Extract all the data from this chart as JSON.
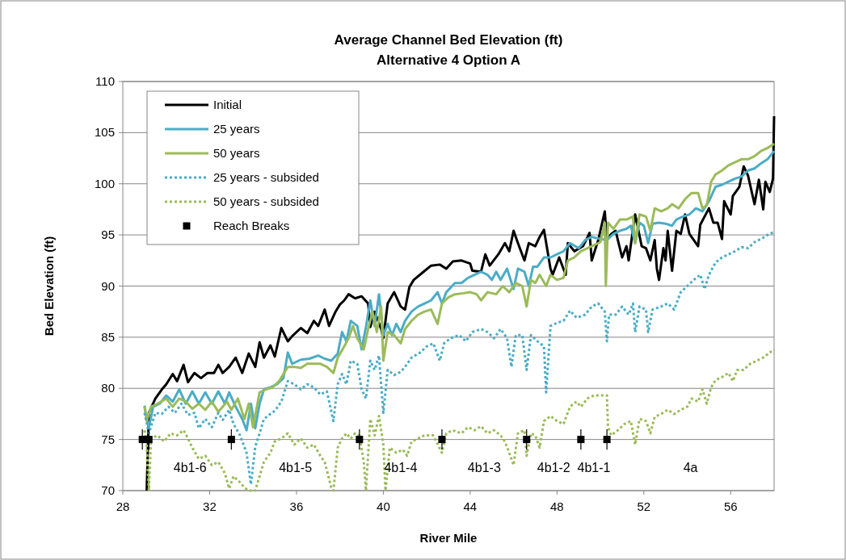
{
  "chart_data": {
    "type": "line",
    "title": "Average Channel Bed Elevation (ft)",
    "subtitle": "Alternative 4 Option A",
    "xlabel": "River Mile",
    "ylabel": "Bed Elevation (ft)",
    "xlim": [
      28,
      58
    ],
    "xticks": [
      28,
      32,
      36,
      40,
      44,
      48,
      52,
      56
    ],
    "ylim": [
      70,
      110
    ],
    "yticks": [
      70,
      75,
      80,
      85,
      90,
      95,
      100,
      105,
      110
    ],
    "grid": "y",
    "legend": "top left",
    "series": [
      {
        "name": "Initial",
        "line_style": "solid",
        "color": "#000000",
        "x": [
          29.1,
          29.2,
          29.5,
          29.8,
          30.0,
          30.3,
          30.5,
          30.8,
          31.0,
          31.3,
          31.6,
          31.9,
          32.2,
          32.4,
          32.6,
          32.9,
          33.2,
          33.5,
          33.8,
          34.1,
          34.3,
          34.5,
          34.8,
          35.0,
          35.3,
          35.6,
          35.8,
          36.2,
          36.5,
          36.8,
          37.0,
          37.3,
          37.5,
          37.8,
          38.0,
          38.2,
          38.4,
          38.7,
          39.0,
          39.3,
          39.4,
          39.6,
          39.9,
          40.0,
          40.2,
          40.5,
          40.8,
          41.0,
          41.2,
          41.4,
          41.8,
          42.2,
          42.6,
          42.9,
          43.2,
          43.6,
          44.0,
          44.1,
          44.5,
          44.7,
          44.9,
          45.3,
          45.6,
          45.8,
          46.0,
          46.2,
          46.5,
          46.7,
          47.0,
          47.2,
          47.4,
          47.7,
          47.8,
          48.1,
          48.4,
          48.5,
          48.8,
          49.2,
          49.5,
          49.6,
          49.9,
          50.2,
          50.3,
          50.5,
          50.7,
          51.0,
          51.2,
          51.3,
          51.6,
          51.9,
          52.1,
          52.3,
          52.5,
          52.6,
          52.7,
          52.9,
          53.0,
          53.1,
          53.3,
          53.5,
          53.7,
          53.9,
          54.1,
          54.5,
          54.6,
          55.0,
          55.2,
          55.4,
          55.6,
          55.7,
          56.0,
          56.1,
          56.4,
          56.6,
          56.8,
          57.1,
          57.3,
          57.5,
          57.6,
          57.8,
          57.95,
          58.0
        ],
        "values": [
          70,
          77.6,
          79.0,
          79.9,
          80.4,
          81.4,
          80.7,
          82.3,
          80.6,
          81.5,
          81.0,
          81.5,
          81.5,
          82.3,
          81.5,
          82.1,
          83.0,
          81.5,
          83.4,
          82.1,
          84.5,
          83.0,
          84.2,
          83.1,
          85.9,
          84.6,
          85.1,
          85.9,
          85.4,
          86.6,
          86.1,
          87.7,
          86.1,
          87.5,
          88.2,
          88.6,
          89.2,
          88.8,
          89.0,
          88.3,
          86.0,
          87.5,
          85.8,
          84.9,
          88.3,
          89.4,
          88.0,
          87.7,
          89.9,
          90.6,
          91.3,
          92.0,
          92.1,
          91.7,
          92.4,
          92.5,
          92.2,
          91.5,
          91.4,
          93.1,
          92.0,
          93.1,
          94.2,
          93.4,
          95.4,
          94.2,
          92.5,
          94.2,
          93.9,
          94.8,
          95.5,
          91.7,
          91.1,
          92.8,
          91.1,
          94.2,
          93.4,
          93.9,
          95.2,
          92.5,
          94.5,
          97.3,
          94.5,
          95.1,
          95.4,
          92.8,
          93.9,
          92.5,
          97.0,
          93.9,
          93.7,
          92.5,
          94.5,
          91.7,
          90.6,
          93.7,
          92.5,
          95.4,
          91.5,
          95.4,
          95.1,
          97.0,
          95.1,
          93.9,
          96.0,
          97.6,
          96.2,
          96.2,
          94.6,
          98.3,
          97.0,
          98.8,
          99.7,
          101.7,
          100.8,
          98.0,
          100.4,
          97.5,
          100.2,
          99.2,
          100.5,
          106.6
        ]
      },
      {
        "name": "25 years",
        "line_style": "solid",
        "color": "#4bacc6",
        "x": [
          29.0,
          29.1,
          29.2,
          29.4,
          29.7,
          30.0,
          30.3,
          30.6,
          30.9,
          31.2,
          31.5,
          31.8,
          32.1,
          32.4,
          32.7,
          32.9,
          33.2,
          33.5,
          33.7,
          33.9,
          34.1,
          34.3,
          34.5,
          34.8,
          35.1,
          35.4,
          35.6,
          35.8,
          36.2,
          36.6,
          37.0,
          37.3,
          37.6,
          37.9,
          38.1,
          38.3,
          38.5,
          38.8,
          39.0,
          39.2,
          39.4,
          39.6,
          39.8,
          40.0,
          40.2,
          40.4,
          40.6,
          40.8,
          41.0,
          41.3,
          41.6,
          41.9,
          42.2,
          42.5,
          42.7,
          42.9,
          43.3,
          43.6,
          43.9,
          44.2,
          44.5,
          44.8,
          45.0,
          45.2,
          45.4,
          45.7,
          46.0,
          46.2,
          46.5,
          46.7,
          46.9,
          47.1,
          47.4,
          47.7,
          48.0,
          48.3,
          48.6,
          49.0,
          49.3,
          49.6,
          50.0,
          50.3,
          50.6,
          50.9,
          51.2,
          51.4,
          51.6,
          51.8,
          52.0,
          52.2,
          52.4,
          52.7,
          53.0,
          53.3,
          53.5,
          53.8,
          54.1,
          54.4,
          54.7,
          55.0,
          55.3,
          55.6,
          55.9,
          56.2,
          56.5,
          56.8,
          57.1,
          57.4,
          57.7,
          58.0
        ],
        "values": [
          78.3,
          77.0,
          76.2,
          78.2,
          78.5,
          79.3,
          78.7,
          79.9,
          78.5,
          79.7,
          78.5,
          79.6,
          78.5,
          79.7,
          78.5,
          79.6,
          78.2,
          77.0,
          75.9,
          78.5,
          76.1,
          78.5,
          79.9,
          80.1,
          80.4,
          81.0,
          83.5,
          82.4,
          82.8,
          82.9,
          83.2,
          82.9,
          82.7,
          83.4,
          85.5,
          84.6,
          86.6,
          86.1,
          83.8,
          86.0,
          88.6,
          86.1,
          89.2,
          85.2,
          86.3,
          85.2,
          86.3,
          85.5,
          86.6,
          87.5,
          88.0,
          88.3,
          88.6,
          89.4,
          88.3,
          89.4,
          90.3,
          90.3,
          90.8,
          91.1,
          91.4,
          91.1,
          90.6,
          91.4,
          90.6,
          91.7,
          89.7,
          91.7,
          91.4,
          90.0,
          91.9,
          91.9,
          92.8,
          92.8,
          93.1,
          93.4,
          94.2,
          93.7,
          94.5,
          94.8,
          94.6,
          94.5,
          95.1,
          95.4,
          95.6,
          95.9,
          94.2,
          96.2,
          95.9,
          94.2,
          96.1,
          96.2,
          96.1,
          95.9,
          96.5,
          96.8,
          97.0,
          97.6,
          97.3,
          98.3,
          99.7,
          99.9,
          100.2,
          100.5,
          100.7,
          101.3,
          101.5,
          102.0,
          102.4,
          103.2
        ]
      },
      {
        "name": "50 years",
        "line_style": "solid",
        "color": "#9bbb59",
        "x": [
          29.0,
          29.1,
          29.3,
          29.6,
          30.0,
          30.3,
          30.6,
          30.9,
          31.2,
          31.5,
          31.8,
          32.1,
          32.4,
          32.8,
          33.0,
          33.3,
          33.6,
          33.8,
          34.0,
          34.3,
          34.6,
          34.9,
          35.2,
          35.6,
          35.9,
          36.2,
          36.5,
          36.8,
          37.1,
          37.4,
          37.7,
          37.9,
          38.2,
          38.4,
          38.6,
          38.8,
          39.1,
          39.3,
          39.5,
          39.7,
          39.9,
          40.0,
          40.2,
          40.5,
          40.8,
          41.0,
          41.3,
          41.6,
          41.9,
          42.2,
          42.5,
          42.7,
          43.0,
          43.3,
          43.7,
          44.0,
          44.3,
          44.5,
          44.8,
          45.2,
          45.5,
          45.8,
          46.1,
          46.4,
          46.6,
          46.8,
          47.0,
          47.2,
          47.5,
          47.7,
          48.0,
          48.3,
          48.5,
          48.8,
          49.1,
          49.4,
          49.7,
          50.0,
          50.2,
          50.25,
          50.35,
          50.6,
          50.9,
          51.2,
          51.5,
          51.6,
          51.8,
          52.1,
          52.3,
          52.5,
          52.8,
          53.1,
          53.3,
          53.6,
          53.9,
          54.2,
          54.5,
          54.7,
          54.9,
          55.1,
          55.3,
          55.6,
          55.9,
          56.2,
          56.5,
          56.8,
          57.1,
          57.4,
          57.7,
          58.0
        ],
        "values": [
          78.2,
          76.8,
          78.2,
          78.5,
          79.0,
          78.2,
          79.0,
          78.7,
          78.0,
          78.5,
          77.9,
          78.7,
          77.7,
          78.7,
          77.9,
          79.0,
          77.0,
          78.5,
          76.2,
          79.6,
          79.9,
          80.1,
          80.7,
          82.1,
          82.1,
          82.0,
          82.4,
          82.4,
          82.4,
          82.1,
          81.5,
          83.0,
          84.1,
          84.9,
          86.1,
          84.9,
          83.8,
          85.8,
          87.5,
          85.5,
          88.0,
          82.7,
          85.5,
          85.2,
          84.4,
          85.8,
          86.6,
          87.2,
          87.5,
          87.7,
          86.3,
          88.3,
          88.9,
          89.2,
          89.3,
          89.4,
          89.2,
          88.6,
          89.4,
          89.2,
          90.0,
          89.4,
          90.3,
          90.0,
          88.0,
          90.6,
          90.3,
          91.1,
          90.0,
          91.1,
          90.6,
          90.8,
          92.5,
          92.8,
          93.4,
          93.7,
          94.0,
          94.3,
          96.2,
          90.0,
          96.2,
          95.6,
          96.5,
          96.5,
          96.8,
          94.2,
          97.0,
          96.8,
          95.4,
          97.6,
          97.3,
          97.6,
          98.0,
          97.6,
          98.5,
          99.1,
          99.1,
          97.6,
          97.9,
          100.2,
          100.9,
          101.3,
          101.8,
          102.1,
          102.4,
          102.4,
          102.7,
          103.2,
          103.5,
          103.9
        ]
      },
      {
        "name": "25 years - subsided",
        "line_style": "dotted",
        "color": "#4bacc6",
        "x": [
          29.0,
          29.2,
          29.5,
          29.8,
          30.1,
          30.4,
          30.7,
          31.0,
          31.3,
          31.5,
          31.8,
          32.1,
          32.4,
          32.6,
          32.9,
          33.1,
          33.4,
          33.7,
          33.9,
          34.1,
          34.3,
          34.5,
          34.8,
          35.0,
          35.3,
          35.6,
          35.9,
          36.2,
          36.5,
          36.8,
          37.1,
          37.4,
          37.7,
          37.9,
          38.1,
          38.3,
          38.5,
          38.8,
          39.0,
          39.2,
          39.4,
          39.6,
          39.8,
          40.0,
          40.2,
          40.5,
          40.8,
          41.0,
          41.3,
          41.7,
          42.0,
          42.3,
          42.6,
          42.8,
          43.1,
          43.5,
          43.8,
          44.1,
          44.5,
          44.8,
          45.1,
          45.4,
          45.7,
          45.9,
          46.1,
          46.4,
          46.6,
          46.8,
          47.1,
          47.4,
          47.5,
          47.7,
          48.0,
          48.3,
          48.6,
          48.9,
          49.3,
          49.6,
          49.9,
          50.2,
          50.3,
          50.4,
          50.7,
          51.0,
          51.3,
          51.5,
          51.6,
          51.8,
          52.1,
          52.2,
          52.4,
          52.8,
          53.1,
          53.4,
          53.7,
          54.0,
          54.3,
          54.6,
          54.8,
          55.0,
          55.3,
          55.6,
          55.9,
          56.2,
          56.5,
          56.8,
          57.1,
          57.4,
          57.7,
          58.0
        ],
        "values": [
          77.6,
          75.6,
          77.6,
          77.5,
          78.2,
          77.6,
          78.5,
          77.4,
          77.6,
          76.1,
          77.0,
          76.2,
          77.6,
          76.9,
          77.9,
          76.5,
          75.4,
          73.7,
          70.6,
          74.3,
          75.6,
          77.0,
          77.5,
          77.8,
          78.7,
          80.7,
          80.4,
          79.9,
          80.4,
          80.1,
          79.4,
          79.7,
          76.8,
          80.4,
          81.4,
          80.4,
          82.7,
          82.4,
          79.9,
          79.0,
          82.7,
          81.8,
          83.2,
          77.6,
          81.8,
          81.3,
          81.6,
          82.1,
          83.0,
          83.5,
          84.1,
          84.4,
          82.7,
          84.4,
          84.9,
          85.2,
          84.6,
          85.5,
          85.8,
          85.5,
          84.9,
          85.8,
          84.9,
          82.1,
          85.2,
          85.2,
          81.8,
          85.2,
          84.6,
          84.1,
          79.6,
          86.1,
          86.4,
          86.6,
          87.6,
          86.9,
          87.2,
          88.0,
          88.3,
          87.5,
          84.6,
          87.2,
          87.2,
          88.0,
          87.2,
          88.3,
          85.5,
          88.0,
          87.7,
          85.5,
          87.7,
          88.0,
          88.3,
          87.7,
          89.4,
          90.0,
          90.6,
          91.1,
          89.7,
          91.1,
          92.3,
          92.8,
          93.1,
          93.4,
          93.8,
          93.7,
          94.3,
          94.6,
          95.0,
          95.3
        ]
      },
      {
        "name": "50 years - subsided",
        "line_style": "dotted",
        "color": "#9bbb59",
        "x": [
          29.0,
          29.1,
          29.2,
          29.3,
          29.6,
          29.9,
          30.2,
          30.5,
          30.8,
          31.0,
          31.2,
          31.5,
          31.8,
          32.1,
          32.4,
          32.7,
          32.9,
          33.1,
          33.4,
          33.6,
          33.8,
          34.1,
          34.3,
          34.5,
          34.8,
          35.0,
          35.3,
          35.6,
          35.9,
          36.2,
          36.5,
          36.8,
          37.1,
          37.3,
          37.6,
          37.7,
          37.9,
          38.1,
          38.3,
          38.5,
          38.7,
          38.9,
          39.1,
          39.2,
          39.4,
          39.6,
          39.8,
          40.0,
          40.1,
          40.3,
          40.6,
          40.9,
          41.1,
          41.3,
          41.6,
          41.9,
          42.3,
          42.7,
          42.9,
          43.2,
          43.6,
          43.9,
          44.2,
          44.5,
          44.8,
          45.1,
          45.4,
          45.6,
          45.8,
          46.0,
          46.2,
          46.5,
          46.6,
          46.8,
          47.0,
          47.2,
          47.4,
          47.7,
          48.0,
          48.3,
          48.6,
          48.9,
          49.1,
          49.4,
          49.7,
          50.0,
          50.3,
          50.35,
          50.5,
          50.8,
          51.1,
          51.4,
          51.6,
          51.8,
          52.1,
          52.3,
          52.5,
          52.8,
          53.1,
          53.4,
          53.7,
          54.0,
          54.2,
          54.5,
          54.7,
          54.9,
          55.1,
          55.3,
          55.6,
          55.9,
          56.1,
          56.3,
          56.6,
          56.9,
          57.2,
          57.5,
          57.8,
          58.0
        ],
        "values": [
          75.9,
          74.5,
          70,
          75.1,
          75.4,
          74.8,
          75.6,
          75.4,
          75.9,
          75.1,
          74.2,
          73.1,
          73.4,
          72.5,
          72.8,
          71.7,
          70.2,
          71.4,
          70.8,
          70.3,
          70,
          70,
          71.4,
          72.8,
          73.7,
          74.8,
          75.1,
          75.6,
          74.5,
          75.1,
          74.2,
          74.5,
          73.4,
          72.8,
          70.3,
          70,
          74.2,
          75.1,
          75.6,
          75.1,
          75.6,
          75.4,
          72.8,
          70,
          77.0,
          75.4,
          77.3,
          74.5,
          70,
          74.2,
          73.7,
          74.0,
          73.4,
          74.8,
          75.1,
          75.4,
          75.4,
          73.7,
          75.6,
          75.9,
          75.6,
          76.2,
          75.9,
          76.3,
          75.6,
          75.9,
          75.4,
          74.8,
          73.7,
          72.5,
          75.6,
          75.9,
          73.4,
          75.6,
          75.4,
          74.2,
          76.8,
          77.3,
          76.8,
          76.5,
          78.2,
          78.7,
          78.2,
          79.0,
          79.3,
          79.3,
          79.3,
          76.2,
          75.4,
          75.9,
          76.5,
          76.8,
          74.5,
          77.0,
          76.8,
          75.6,
          77.2,
          77.5,
          77.9,
          77.5,
          77.9,
          78.2,
          79.0,
          78.7,
          79.9,
          78.5,
          80.1,
          80.8,
          81.1,
          81.5,
          80.7,
          81.8,
          81.8,
          82.4,
          82.7,
          83.0,
          83.5,
          83.8
        ]
      },
      {
        "name": "Reach Breaks",
        "type": "scatter",
        "marker": "square",
        "color": "#000000",
        "x": [
          28.9,
          29.2,
          33.0,
          38.9,
          42.7,
          46.6,
          49.1,
          50.3
        ],
        "values": [
          75,
          75,
          75,
          75,
          75,
          75,
          75,
          75
        ],
        "errors": [
          1,
          1,
          1,
          1,
          1,
          1,
          1,
          1
        ]
      }
    ],
    "annotations": [
      "4b1-6",
      "4b1-5",
      "4b1-4",
      "4b1-3",
      "4b1-2",
      "4b1-1",
      "4a"
    ]
  }
}
